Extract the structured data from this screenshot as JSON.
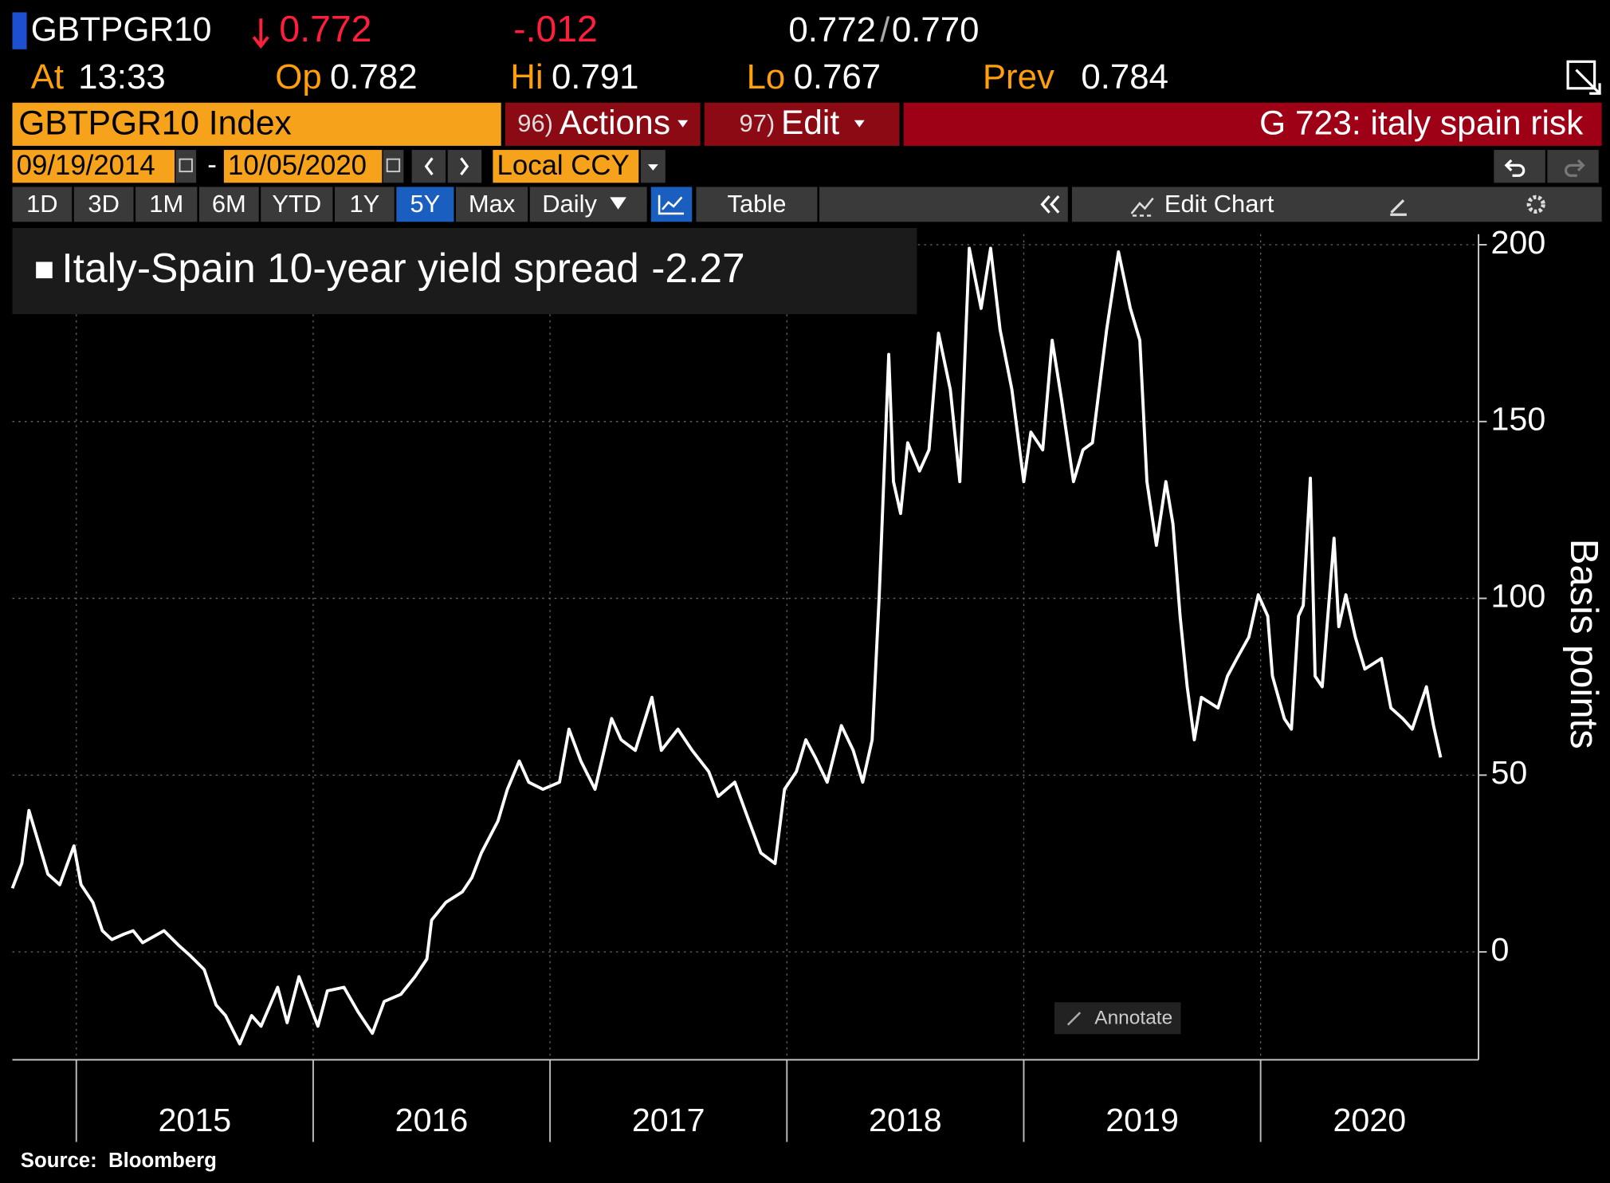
{
  "header": {
    "ticker": "GBTPGR10",
    "last": "0.772",
    "change": "-.012",
    "bid": "0.772",
    "bid_ask_separator": "/",
    "ask": "0.770"
  },
  "quote": [
    {
      "label": "At",
      "value": "13:33"
    },
    {
      "label": "Op",
      "value": "0.782"
    },
    {
      "label": "Hi",
      "value": "0.791"
    },
    {
      "label": "Lo",
      "value": "0.767"
    },
    {
      "label": "Prev",
      "value": "0.784"
    }
  ],
  "command_bar": {
    "security": "GBTPGR10 Index",
    "menus": [
      {
        "number": "96)",
        "label": "Actions"
      },
      {
        "number": "97)",
        "label": "Edit"
      }
    ],
    "page_title": "G 723: italy spain risk"
  },
  "date_range": {
    "start": "09/19/2014",
    "separator": "-",
    "end": "10/05/2020",
    "currency": "Local CCY"
  },
  "toolbar": {
    "periods": [
      "1D",
      "3D",
      "1M",
      "6M",
      "YTD",
      "1Y",
      "5Y",
      "Max"
    ],
    "selected_period": "5Y",
    "frequency": "Daily",
    "view": "Table",
    "edit_chart": "Edit Chart"
  },
  "annotate": "Annotate",
  "source": "Source:  Bloomberg",
  "chart_data": {
    "type": "line",
    "y_label": "Basis points",
    "legend_value": -2.27,
    "grid": true,
    "x": [
      2014.73,
      2014.77,
      2014.8,
      2014.84,
      2014.88,
      2014.93,
      2014.99,
      2015.02,
      2015.07,
      2015.11,
      2015.15,
      2015.2,
      2015.24,
      2015.28,
      2015.37,
      2015.43,
      2015.48,
      2015.54,
      2015.59,
      2015.63,
      2015.69,
      2015.74,
      2015.78,
      2015.85,
      2015.89,
      2015.94,
      2015.98,
      2016.02,
      2016.06,
      2016.13,
      2016.19,
      2016.25,
      2016.3,
      2016.37,
      2016.43,
      2016.48,
      2016.5,
      2016.56,
      2016.63,
      2016.67,
      2016.71,
      2016.78,
      2016.82,
      2016.87,
      2016.91,
      2016.97,
      2017.04,
      2017.08,
      2017.13,
      2017.19,
      2017.26,
      2017.3,
      2017.36,
      2017.43,
      2017.47,
      2017.54,
      2017.6,
      2017.67,
      2017.71,
      2017.78,
      2017.84,
      2017.89,
      2017.95,
      2017.99,
      2018.04,
      2018.08,
      2018.12,
      2018.17,
      2018.23,
      2018.28,
      2018.32,
      2018.36,
      2018.39,
      2018.43,
      2018.45,
      2018.48,
      2018.51,
      2018.56,
      2018.6,
      2018.64,
      2018.69,
      2018.73,
      2018.77,
      2018.82,
      2018.86,
      2018.9,
      2018.95,
      2019.0,
      2019.03,
      2019.08,
      2019.12,
      2019.16,
      2019.21,
      2019.25,
      2019.29,
      2019.35,
      2019.4,
      2019.45,
      2019.49,
      2019.52,
      2019.56,
      2019.6,
      2019.63,
      2019.66,
      2019.69,
      2019.72,
      2019.75,
      2019.82,
      2019.86,
      2019.9,
      2019.95,
      2019.99,
      2020.03,
      2020.05,
      2020.1,
      2020.13,
      2020.16,
      2020.18,
      2020.21,
      2020.23,
      2020.26,
      2020.31,
      2020.33,
      2020.36,
      2020.4,
      2020.44,
      2020.51,
      2020.55,
      2020.6,
      2020.64,
      2020.7,
      2020.73,
      2020.76
    ],
    "series": [
      {
        "name": "Italy-Spain 10-year yield spread",
        "color": "#ffffff",
        "values": [
          18,
          25,
          40,
          31,
          22,
          19,
          30,
          19,
          14,
          6,
          3.5,
          5,
          6,
          2.6,
          6,
          2,
          -1,
          -5,
          -15,
          -18,
          -26,
          -18,
          -21,
          -10,
          -20,
          -7,
          -14,
          -21,
          -11,
          -10,
          -17,
          -23,
          -14,
          -12,
          -7,
          -2,
          9,
          14,
          17,
          21,
          28,
          37,
          46,
          54,
          48,
          46,
          48,
          63,
          54,
          46,
          66,
          60,
          57,
          72,
          57,
          63,
          57,
          51,
          44,
          48,
          37,
          28,
          25,
          46,
          51,
          60,
          55,
          48,
          64,
          57,
          48,
          60,
          101,
          169,
          133,
          124,
          144,
          136,
          142,
          175,
          159,
          133,
          199,
          182,
          199,
          176,
          159,
          133,
          147,
          142,
          173,
          156,
          133,
          142,
          144,
          176,
          198,
          182,
          173,
          133,
          115,
          133,
          121,
          95,
          75,
          60,
          72,
          69,
          78,
          83,
          89,
          101,
          95,
          78,
          66,
          63,
          95,
          98,
          134,
          78,
          75,
          117,
          92,
          101,
          89,
          80,
          83,
          69,
          66,
          63,
          75,
          64,
          55
        ]
      }
    ],
    "xlim": [
      2014.73,
      2020.92
    ],
    "xticks": [
      2015,
      2016,
      2017,
      2018,
      2019,
      2020
    ],
    "ylim": [
      -30.5,
      203
    ],
    "yticks": [
      0,
      50,
      100,
      150,
      200
    ]
  }
}
